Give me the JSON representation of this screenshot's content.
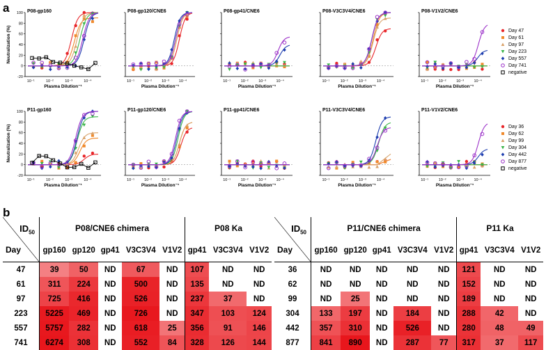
{
  "panel_a_label": "a",
  "panel_b_label": "b",
  "y_axis_label": "Neutralization (%)",
  "x_axis_label": "Plasma Dilution⁻¹",
  "legend_top": [
    {
      "label": "Day 47",
      "color": "#e8262a",
      "marker": "circle"
    },
    {
      "label": "Day 61",
      "color": "#f08a2c",
      "marker": "square"
    },
    {
      "label": "Day 97",
      "color": "#d9a26a",
      "marker": "triangle"
    },
    {
      "label": "Day 223",
      "color": "#3ab54a",
      "marker": "tri-down"
    },
    {
      "label": "Day 557",
      "color": "#1f3fb0",
      "marker": "diamond"
    },
    {
      "label": "Day 741",
      "color": "#9b30c8",
      "marker": "ring"
    },
    {
      "label": "negative",
      "color": "#000000",
      "marker": "open-square"
    }
  ],
  "legend_bottom": [
    {
      "label": "Day 36",
      "color": "#e8262a",
      "marker": "circle"
    },
    {
      "label": "Day 62",
      "color": "#f08a2c",
      "marker": "square"
    },
    {
      "label": "Day 99",
      "color": "#d9a26a",
      "marker": "triangle"
    },
    {
      "label": "Day 304",
      "color": "#3ab54a",
      "marker": "tri-down"
    },
    {
      "label": "Day 442",
      "color": "#1f3fb0",
      "marker": "diamond"
    },
    {
      "label": "Day 877",
      "color": "#9b30c8",
      "marker": "ring"
    },
    {
      "label": "negative",
      "color": "#000000",
      "marker": "open-square"
    }
  ],
  "chart_data": [
    {
      "type": "line",
      "title": "P08-gp160",
      "ylabel": "Neutralization (%)",
      "xlabel": "Plasma Dilution⁻¹",
      "yticks": [
        100,
        80,
        60,
        40,
        20,
        0,
        -20
      ],
      "xticks": [
        "10⁻¹",
        "10⁻²",
        "10⁻³",
        "10⁻⁴"
      ],
      "midpoints": [
        0.62,
        0.66,
        0.7,
        0.74,
        0.8,
        0.78
      ],
      "tops": [
        100,
        90,
        100,
        100,
        100,
        100
      ],
      "neg": true
    },
    {
      "type": "line",
      "title": "P08-gp120/CNE6",
      "yticks": [
        100,
        80,
        60,
        40,
        20,
        0,
        -20
      ],
      "xticks": [
        "10⁻¹",
        "10⁻²",
        "10⁻³",
        "10⁻⁴"
      ],
      "midpoints": [
        0.8,
        0.76,
        0.76,
        0.74,
        0.72,
        0.74
      ],
      "tops": [
        100,
        100,
        100,
        100,
        100,
        100
      ]
    },
    {
      "type": "line",
      "title": "P08-gp41/CNE6",
      "yticks": [
        100,
        80,
        60,
        40,
        20,
        0,
        -20
      ],
      "xticks": [
        "10⁻¹",
        "10⁻²",
        "10⁻³",
        "10⁻⁴"
      ],
      "midpoints": [
        null,
        null,
        null,
        null,
        0.85,
        0.82
      ],
      "tops": [
        0,
        0,
        0,
        0,
        40,
        55
      ]
    },
    {
      "type": "line",
      "title": "P08-V3C3V4/CNE6",
      "yticks": [
        100,
        80,
        60,
        40,
        20,
        0,
        -20
      ],
      "xticks": [
        "10⁻¹",
        "10⁻²",
        "10⁻³",
        "10⁻⁴"
      ],
      "midpoints": [
        0.78,
        0.74,
        0.74,
        0.72,
        0.72,
        0.72
      ],
      "tops": [
        70,
        100,
        90,
        100,
        100,
        100
      ]
    },
    {
      "type": "line",
      "title": "P08-V1V2/CNE6",
      "yticks": [
        100,
        80,
        60,
        40,
        20,
        0,
        -20
      ],
      "xticks": [
        "10⁻¹",
        "10⁻²",
        "10⁻³",
        "10⁻⁴"
      ],
      "midpoints": [
        null,
        null,
        null,
        null,
        0.85,
        0.86
      ],
      "tops": [
        0,
        0,
        0,
        0,
        30,
        80
      ]
    },
    {
      "type": "line",
      "title": "P11-gp160",
      "yticks": [
        100,
        80,
        60,
        40,
        20,
        0,
        -20
      ],
      "xticks": [
        "10⁻¹",
        "10⁻²",
        "10⁻³",
        "10⁻⁴"
      ],
      "midpoints": [
        0.8,
        0.74,
        0.72,
        0.7,
        0.7,
        0.68
      ],
      "tops": [
        20,
        50,
        60,
        90,
        100,
        100
      ],
      "neg": true
    },
    {
      "type": "line",
      "title": "P11-gp120/CNE6",
      "yticks": [
        100,
        80,
        60,
        40,
        20,
        0,
        -20
      ],
      "xticks": [
        "10⁻¹",
        "10⁻²",
        "10⁻³",
        "10⁻⁴"
      ],
      "midpoints": [
        0.82,
        0.8,
        0.8,
        0.78,
        0.76,
        0.74
      ],
      "tops": [
        70,
        80,
        80,
        100,
        100,
        100
      ]
    },
    {
      "type": "line",
      "title": "P11-gp41/CNE6",
      "yticks": [
        100,
        80,
        60,
        40,
        20,
        0,
        -20
      ],
      "xticks": [
        "10⁻¹",
        "10⁻²",
        "10⁻³",
        "10⁻⁴"
      ],
      "midpoints": [
        null,
        null,
        null,
        null,
        null,
        null
      ],
      "tops": [
        0,
        0,
        0,
        0,
        0,
        0
      ]
    },
    {
      "type": "line",
      "title": "P11-V3C3V4/CNE6",
      "yticks": [
        100,
        80,
        60,
        40,
        20,
        0,
        -20
      ],
      "xticks": [
        "10⁻¹",
        "10⁻²",
        "10⁻³",
        "10⁻⁴"
      ],
      "midpoints": [
        null,
        null,
        null,
        0.82,
        0.78,
        0.8
      ],
      "tops": [
        10,
        10,
        20,
        80,
        90,
        70
      ]
    },
    {
      "type": "line",
      "title": "P11-V1V2/CNE6",
      "yticks": [
        100,
        80,
        60,
        40,
        20,
        0,
        -20
      ],
      "xticks": [
        "10⁻¹",
        "10⁻²",
        "10⁻³",
        "10⁻⁴"
      ],
      "midpoints": [
        null,
        null,
        null,
        null,
        0.86,
        0.86
      ],
      "tops": [
        0,
        0,
        0,
        0,
        30,
        80
      ]
    }
  ],
  "table_left": {
    "corner_top": "ID",
    "corner_sub": "50",
    "corner_bottom": "Day",
    "group1": "P08/CNE6 chimera",
    "group2": "P08 Ka",
    "columns": [
      "gp160",
      "gp120",
      "gp41",
      "V3C3V4",
      "V1V2",
      "gp41",
      "V3C3V4",
      "V1V2"
    ],
    "rows": [
      {
        "day": "47",
        "cells": [
          "39",
          "50",
          "ND",
          "67",
          "ND",
          "107",
          "ND",
          "ND"
        ]
      },
      {
        "day": "61",
        "cells": [
          "311",
          "224",
          "ND",
          "500",
          "ND",
          "135",
          "ND",
          "ND"
        ]
      },
      {
        "day": "97",
        "cells": [
          "725",
          "416",
          "ND",
          "526",
          "ND",
          "237",
          "37",
          "ND"
        ]
      },
      {
        "day": "223",
        "cells": [
          "5225",
          "469",
          "ND",
          "726",
          "ND",
          "347",
          "103",
          "124"
        ]
      },
      {
        "day": "557",
        "cells": [
          "5757",
          "282",
          "ND",
          "618",
          "25",
          "356",
          "91",
          "146"
        ]
      },
      {
        "day": "741",
        "cells": [
          "6274",
          "308",
          "ND",
          "552",
          "84",
          "328",
          "126",
          "144"
        ]
      }
    ]
  },
  "table_right": {
    "corner_top": "ID",
    "corner_sub": "50",
    "corner_bottom": "Day",
    "group1": "P11/CNE6 chimera",
    "group2": "P11 Ka",
    "columns": [
      "gp160",
      "gp120",
      "gp41",
      "V3C3V4",
      "V1V2",
      "gp41",
      "V3C3V4",
      "V1V2"
    ],
    "rows": [
      {
        "day": "36",
        "cells": [
          "ND",
          "ND",
          "ND",
          "ND",
          "ND",
          "121",
          "ND",
          "ND"
        ]
      },
      {
        "day": "62",
        "cells": [
          "ND",
          "ND",
          "ND",
          "ND",
          "ND",
          "152",
          "ND",
          "ND"
        ]
      },
      {
        "day": "99",
        "cells": [
          "ND",
          "25",
          "ND",
          "ND",
          "ND",
          "189",
          "ND",
          "ND"
        ]
      },
      {
        "day": "304",
        "cells": [
          "133",
          "197",
          "ND",
          "184",
          "ND",
          "288",
          "42",
          "ND"
        ]
      },
      {
        "day": "442",
        "cells": [
          "357",
          "310",
          "ND",
          "526",
          "ND",
          "280",
          "48",
          "49"
        ]
      },
      {
        "day": "877",
        "cells": [
          "841",
          "890",
          "ND",
          "287",
          "77",
          "317",
          "37",
          "117"
        ]
      }
    ]
  }
}
